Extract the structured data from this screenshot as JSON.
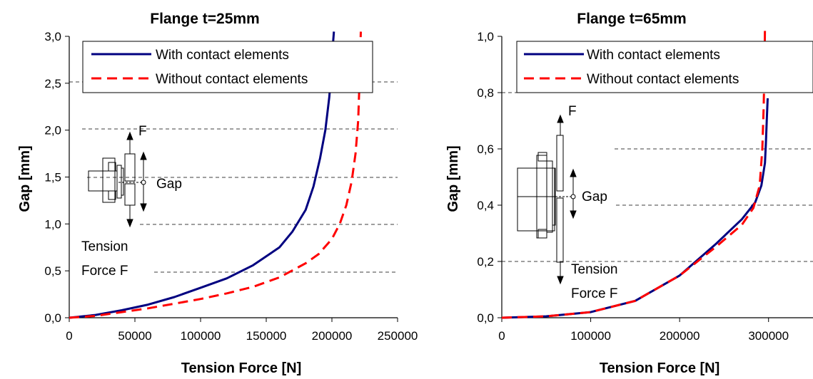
{
  "chart_data": [
    {
      "type": "line",
      "title": "Flange t=25mm",
      "xlabel": "Tension Force [N]",
      "ylabel": "Gap [mm]",
      "xlim": [
        0,
        250000
      ],
      "ylim": [
        0,
        3.0
      ],
      "xticks": [
        "0",
        "50000",
        "100000",
        "150000",
        "200000",
        "250000"
      ],
      "yticks": [
        "0,0",
        "0,5",
        "1,0",
        "1,5",
        "2,0",
        "2,5",
        "3,0"
      ],
      "grid": "dashed horizontal lines, partial",
      "legend_position": "top-right",
      "series": [
        {
          "name": "With contact elements",
          "color": "#000080",
          "style": "solid",
          "x": [
            0,
            20000,
            40000,
            60000,
            80000,
            100000,
            120000,
            140000,
            160000,
            170000,
            180000,
            186000,
            191000,
            195000,
            198000,
            200000,
            201000,
            201500
          ],
          "y": [
            0,
            0.03,
            0.08,
            0.14,
            0.22,
            0.32,
            0.42,
            0.56,
            0.75,
            0.92,
            1.15,
            1.4,
            1.7,
            2.0,
            2.35,
            2.7,
            2.95,
            3.05
          ]
        },
        {
          "name": "Without contact elements",
          "color": "#ff0000",
          "style": "dashed",
          "x": [
            0,
            20000,
            40000,
            60000,
            80000,
            100000,
            120000,
            140000,
            160000,
            180000,
            190000,
            200000,
            206000,
            211000,
            215000,
            218000,
            220000,
            221000,
            221500,
            222000
          ],
          "y": [
            0,
            0.02,
            0.06,
            0.1,
            0.15,
            0.2,
            0.26,
            0.33,
            0.43,
            0.58,
            0.68,
            0.84,
            1.0,
            1.2,
            1.45,
            1.75,
            2.1,
            2.5,
            2.8,
            3.05
          ]
        }
      ],
      "annotations": [
        "F",
        "Gap",
        "Tension",
        "Force F"
      ]
    },
    {
      "type": "line",
      "title": "Flange t=65mm",
      "xlabel": "Tension Force [N]",
      "ylabel": "Gap [mm]",
      "xlim": [
        0,
        350000
      ],
      "ylim": [
        0,
        1.0
      ],
      "xticks": [
        "0",
        "100000",
        "200000",
        "300000"
      ],
      "yticks": [
        "0,0",
        "0,2",
        "0,4",
        "0,6",
        "0,8",
        "1,0"
      ],
      "grid": "dashed horizontal lines, partial",
      "legend_position": "top-right",
      "series": [
        {
          "name": "With contact elements",
          "color": "#000080",
          "style": "solid",
          "x": [
            0,
            50000,
            100000,
            150000,
            200000,
            240000,
            270000,
            285000,
            292000,
            296000,
            297000,
            298000,
            299000
          ],
          "y": [
            0,
            0.005,
            0.02,
            0.06,
            0.15,
            0.26,
            0.35,
            0.41,
            0.47,
            0.55,
            0.62,
            0.7,
            0.78
          ]
        },
        {
          "name": "Without contact elements",
          "color": "#ff0000",
          "style": "dashed",
          "x": [
            0,
            50000,
            100000,
            150000,
            200000,
            240000,
            270000,
            283000,
            290000,
            293000,
            294500,
            295500,
            296000
          ],
          "y": [
            0,
            0.005,
            0.02,
            0.06,
            0.15,
            0.25,
            0.33,
            0.39,
            0.47,
            0.6,
            0.75,
            0.9,
            1.03
          ]
        }
      ],
      "annotations": [
        "F",
        "Gap",
        "Tension",
        "Force F"
      ]
    }
  ]
}
